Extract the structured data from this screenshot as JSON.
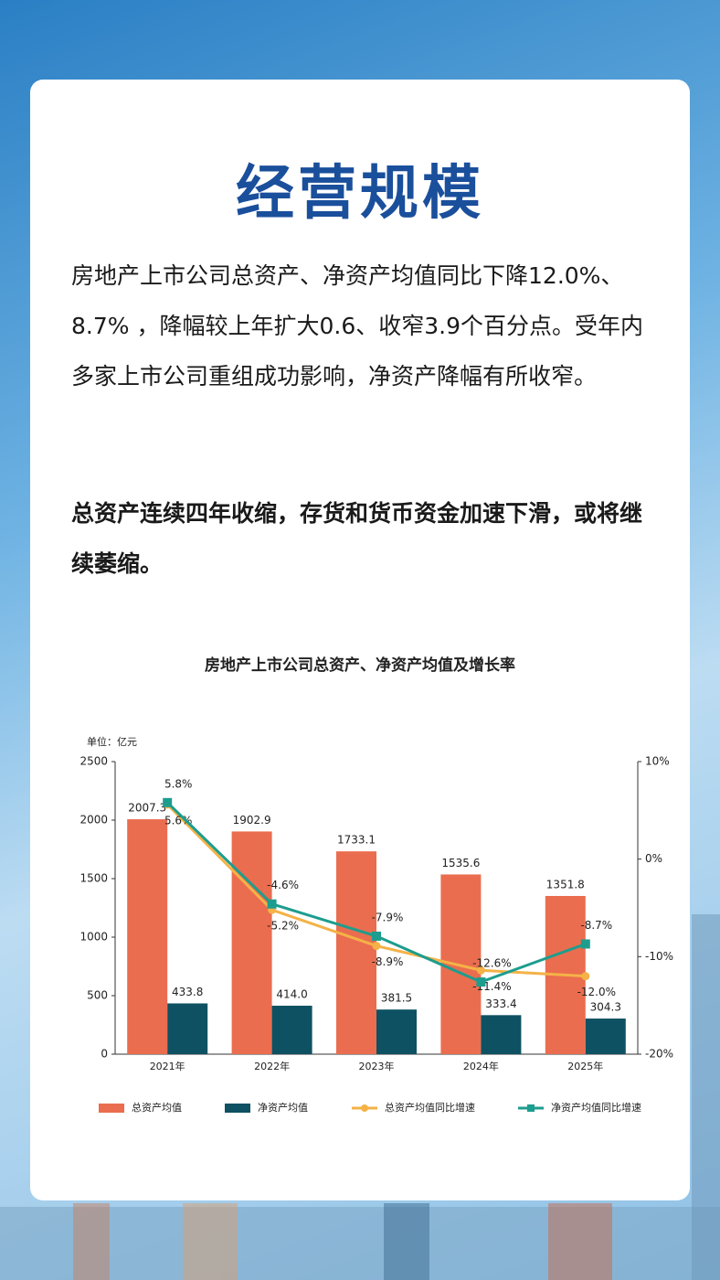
{
  "header": {
    "title": "经营规模"
  },
  "paragraphs": [
    "房地产上市公司总资产、净资产均值同比下降12.0%、8.7% ，降幅较上年扩大0.6、收窄3.9个百分点。受年内多家上市公司重组成功影响，净资产降幅有所收窄。",
    "总资产连续四年收缩，存货和货币资金加速下滑，或将继续萎缩。"
  ],
  "chart_data": {
    "type": "combo",
    "title": "房地产上市公司总资产、净资产均值及增长率",
    "unit_label": "单位：亿元",
    "categories": [
      "2021年",
      "2022年",
      "2023年",
      "2024年",
      "2025年"
    ],
    "ylim": [
      0,
      2500
    ],
    "yticks": [
      0,
      500,
      1000,
      1500,
      2000,
      2500
    ],
    "y2lim": [
      -20,
      10
    ],
    "y2ticks": [
      {
        "value": -20,
        "label": "-20%"
      },
      {
        "value": -10,
        "label": "-10%"
      },
      {
        "value": 0,
        "label": "0%"
      },
      {
        "value": 10,
        "label": "10%"
      }
    ],
    "grid": false,
    "legend": "bottom",
    "series": [
      {
        "name": "总资产均值",
        "type": "bar",
        "color": "#ea6d4f",
        "values": [
          2007.3,
          1902.9,
          1733.1,
          1535.6,
          1351.8
        ],
        "value_labels": [
          "2007.3",
          "1902.9",
          "1733.1",
          "1535.6",
          "1351.8"
        ]
      },
      {
        "name": "净资产均值",
        "type": "bar",
        "color": "#0e5162",
        "values": [
          433.8,
          414.0,
          381.5,
          333.4,
          304.3
        ],
        "value_labels": [
          "433.8",
          "414.0",
          "381.5",
          "333.4",
          "304.3"
        ]
      },
      {
        "name": "总资产均值同比增速",
        "type": "line",
        "axis": "y2",
        "color": "#f4b247",
        "values": [
          5.6,
          -5.2,
          -8.9,
          -11.4,
          -12.0
        ],
        "value_labels": [
          "5.6%",
          "-5.2%",
          "-8.9%",
          "-11.4%",
          "-12.0%"
        ]
      },
      {
        "name": "净资产均值同比增速",
        "type": "line",
        "axis": "y2",
        "color": "#1d9d8e",
        "values": [
          5.8,
          -4.6,
          -7.9,
          -12.6,
          -8.7
        ],
        "value_labels": [
          "5.8%",
          "-4.6%",
          "-7.9%",
          "-12.6%",
          "-8.7%"
        ]
      }
    ]
  }
}
